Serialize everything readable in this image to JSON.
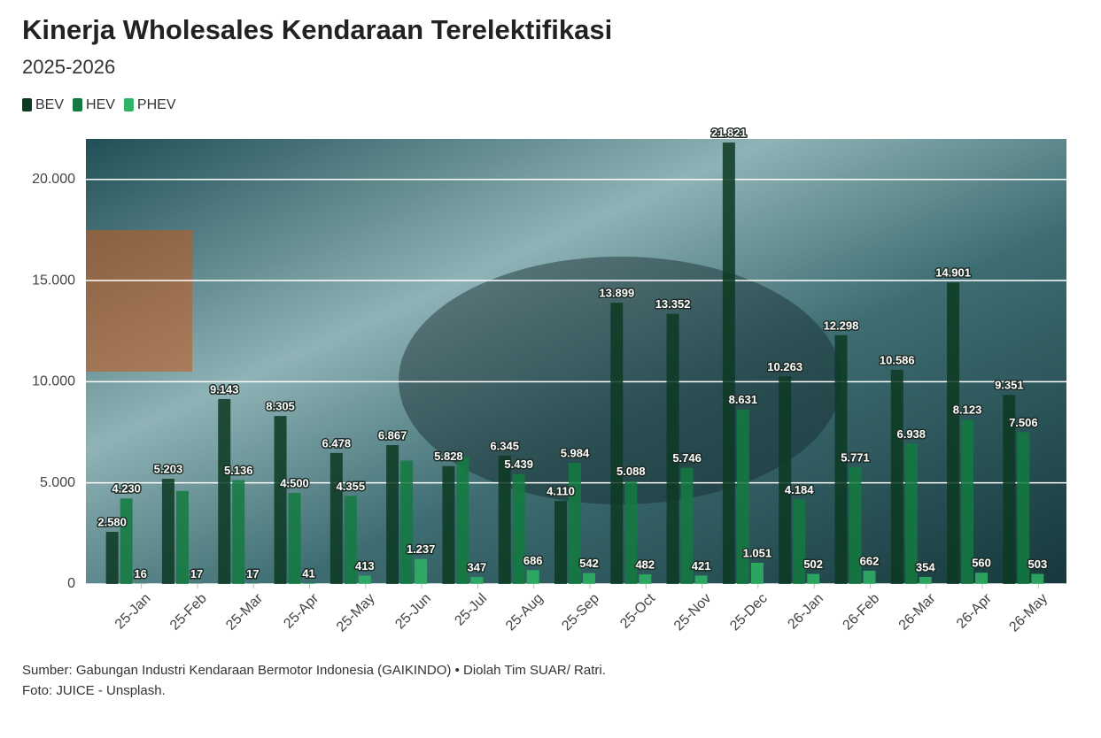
{
  "chart_data": {
    "type": "bar",
    "title": "Kinerja Wholesales Kendaraan Terelektifikasi",
    "subtitle": "2025-2026",
    "source": "Sumber: Gabungan Industri Kendaraan Bermotor Indonesia (GAIKINDO) • Diolah Tim SUAR/ Ratri.",
    "photo_credit": "Foto: JUICE - Unsplash.",
    "categories": [
      "25-Jan",
      "25-Feb",
      "25-Mar",
      "25-Apr",
      "25-May",
      "25-Jun",
      "25-Jul",
      "25-Aug",
      "25-Sep",
      "25-Oct",
      "25-Nov",
      "25-Dec",
      "26-Jan",
      "26-Feb",
      "26-Mar",
      "26-Apr",
      "26-May"
    ],
    "series": [
      {
        "name": "BEV",
        "color": "#0c3a22",
        "values": [
          2580,
          5203,
          9143,
          8305,
          6478,
          6867,
          5828,
          6345,
          4110,
          13899,
          13352,
          21821,
          10263,
          12298,
          10586,
          14901,
          9351
        ],
        "value_labels": [
          "2.580",
          "5.203",
          "9.143",
          "8.305",
          "6.478",
          "6.867",
          "5.828",
          "6.345",
          "4.110",
          "13.899",
          "13.352",
          "21.821",
          "10.263",
          "12.298",
          "10.586",
          "14.901",
          "9.351"
        ]
      },
      {
        "name": "HEV",
        "color": "#137a3f",
        "values": [
          4230,
          4600,
          5136,
          4500,
          4355,
          6100,
          6300,
          5439,
          5984,
          5088,
          5746,
          8631,
          4184,
          5771,
          6938,
          8123,
          7506
        ],
        "value_labels": [
          "4.230",
          null,
          "5.136",
          "4.500",
          "4.355",
          null,
          null,
          "5.439",
          "5.984",
          "5.088",
          "5.746",
          "8.631",
          "4.184",
          "5.771",
          "6.938",
          "8.123",
          "7.506"
        ]
      },
      {
        "name": "PHEV",
        "color": "#2eb464",
        "values": [
          16,
          17,
          17,
          41,
          413,
          1237,
          347,
          686,
          542,
          482,
          421,
          1051,
          502,
          662,
          354,
          560,
          503
        ],
        "value_labels": [
          "16",
          "17",
          "17",
          "41",
          "413",
          "1.237",
          "347",
          "686",
          "542",
          "482",
          "421",
          "1.051",
          "502",
          "662",
          "354",
          "560",
          "503"
        ]
      }
    ],
    "ylim": [
      0,
      22000
    ],
    "yticks": [
      0,
      {
        "value": 5000,
        "label": "5.000"
      },
      {
        "value": 10000,
        "label": "10.000"
      },
      {
        "value": 15000,
        "label": "15.000"
      },
      {
        "value": 20000,
        "label": "20.000"
      }
    ],
    "grid": true
  }
}
